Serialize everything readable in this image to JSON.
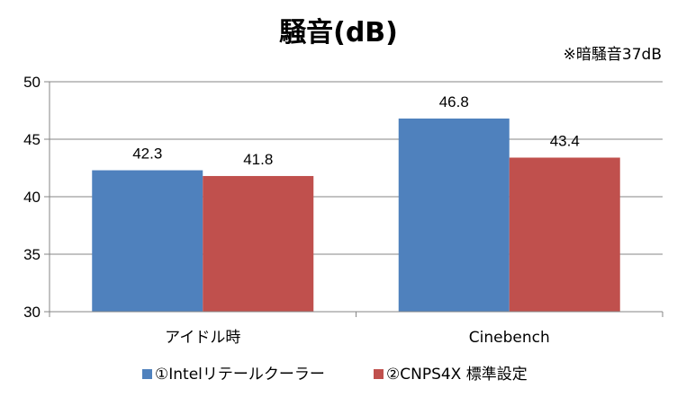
{
  "note": "※暗騒音37dB",
  "colors": {
    "series1": "#4F81BD",
    "series2": "#C0504D",
    "gridline": "#868686",
    "axis": "#868686"
  },
  "chart_data": {
    "type": "bar",
    "title": "騒音(dB)",
    "categories": [
      "アイドル時",
      "Cinebench"
    ],
    "series": [
      {
        "name": "①Intelリテールクーラー",
        "values": [
          42.3,
          46.8
        ],
        "color": "#4F81BD"
      },
      {
        "name": "②CNPS4X 標準設定",
        "values": [
          41.8,
          43.4
        ],
        "color": "#C0504D"
      }
    ],
    "ylim": [
      30,
      50
    ],
    "yticks": [
      "30",
      "35",
      "40",
      "45",
      "50"
    ],
    "data_labels": [
      [
        "42.3",
        "46.8"
      ],
      [
        "41.8",
        "43.4"
      ]
    ],
    "grid": true,
    "legend": "bottom",
    "xlabel": "",
    "ylabel": ""
  }
}
